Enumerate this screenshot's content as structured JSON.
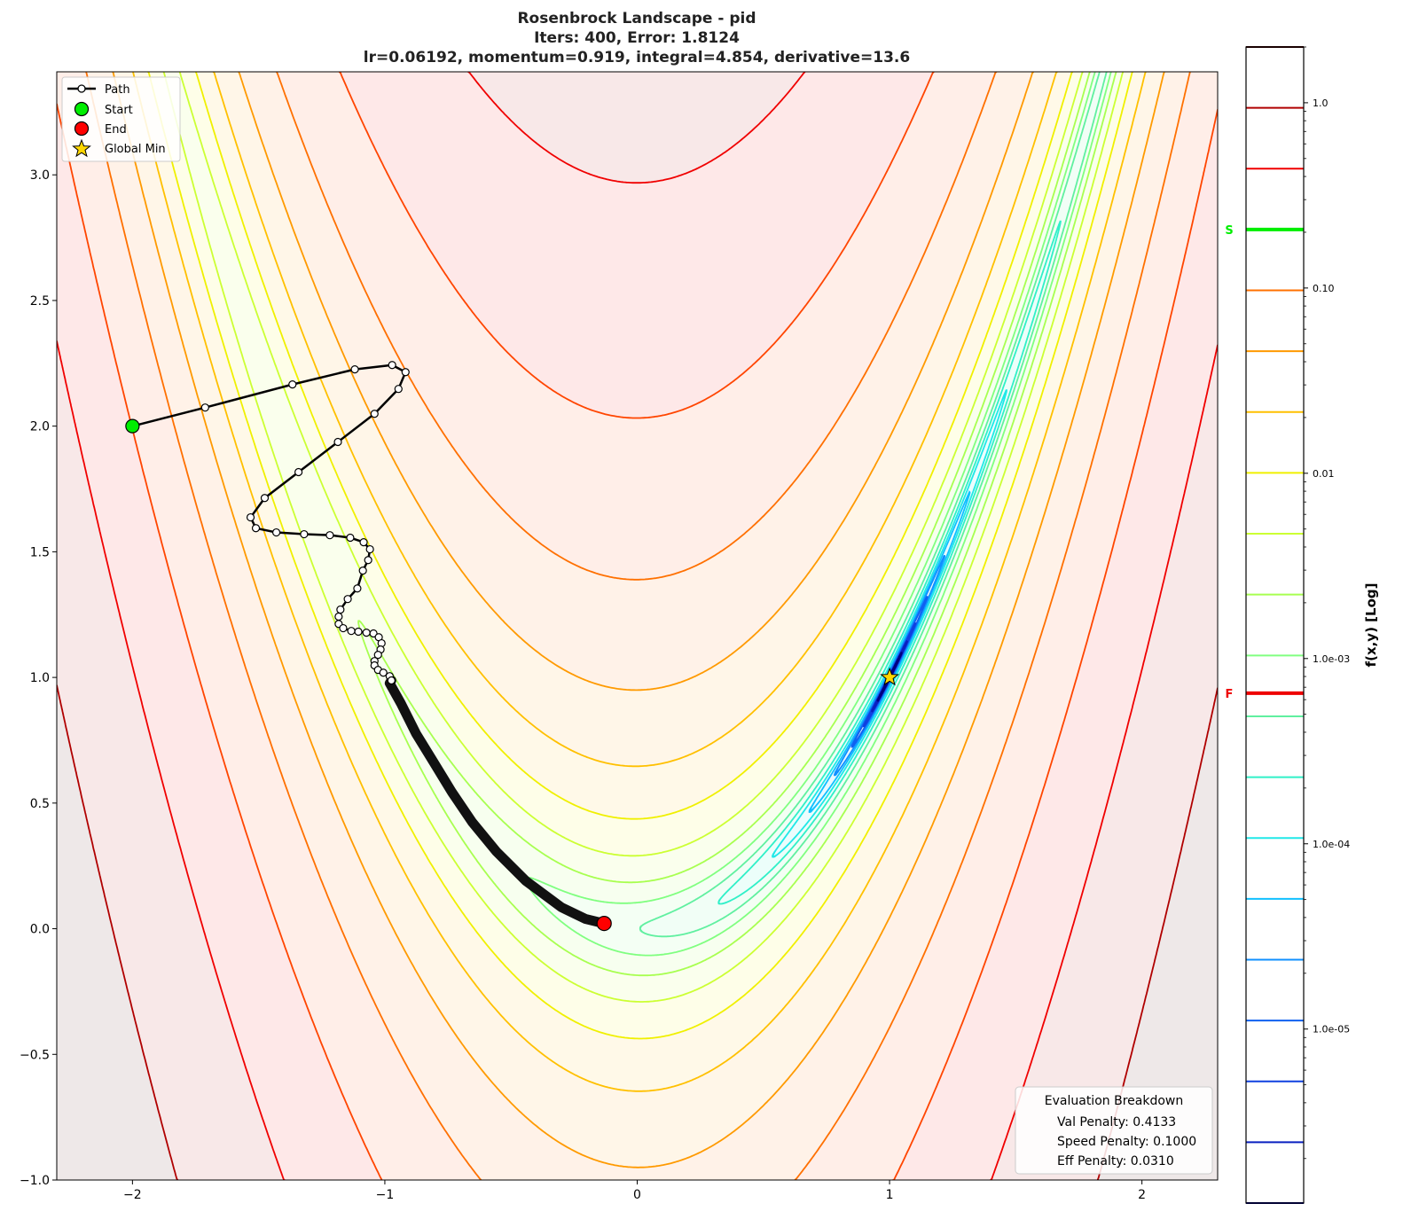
{
  "chart_data": {
    "type": "contour",
    "title_lines": [
      "Rosenbrock Landscape - pid",
      "Iters: 400, Error: 1.8124",
      "lr=0.06192, momentum=0.919, integral=4.854, derivative=13.6"
    ],
    "function": "(1-x)^2 + 100(y-x^2)^2",
    "xlim": [
      -2.3,
      2.3
    ],
    "ylim": [
      -1.0,
      3.41
    ],
    "x_ticks": [
      -2,
      -1,
      0,
      1,
      2
    ],
    "x_tick_labels": [
      "−2",
      "−1",
      "0",
      "1",
      "2"
    ],
    "y_ticks": [
      -1.0,
      -0.5,
      0.0,
      0.5,
      1.0,
      1.5,
      2.0,
      2.5,
      3.0
    ],
    "y_tick_labels": [
      "−1.0",
      "−0.5",
      "0.0",
      "0.5",
      "1.0",
      "1.5",
      "2.0",
      "2.5",
      "3.0"
    ],
    "grid": false,
    "contour_levels": [
      4000,
      1878,
      882,
      414,
      194,
      91.2,
      42.8,
      20.1,
      9.44,
      4.43,
      2.08,
      0.977,
      0.459,
      0.215,
      0.101,
      0.0475,
      0.0223,
      0.0105,
      0.00491,
      0.00231
    ],
    "contour_colors": [
      "#3d0000",
      "#b00000",
      "#f00000",
      "#ff4500",
      "#ff7000",
      "#ff9a00",
      "#ffc000",
      "#f0f000",
      "#ccff33",
      "#a8ff50",
      "#80ff80",
      "#60f0a0",
      "#30f0c8",
      "#20e8e8",
      "#10c0ff",
      "#1090ff",
      "#1060f0",
      "#1040e0",
      "#0a20c0",
      "#000080"
    ],
    "path": [
      [
        -2.0,
        2.0
      ],
      [
        -1.712,
        2.074
      ],
      [
        -1.366,
        2.166
      ],
      [
        -1.119,
        2.226
      ],
      [
        -0.971,
        2.243
      ],
      [
        -0.918,
        2.215
      ],
      [
        -0.946,
        2.148
      ],
      [
        -1.041,
        2.049
      ],
      [
        -1.186,
        1.937
      ],
      [
        -1.342,
        1.817
      ],
      [
        -1.476,
        1.714
      ],
      [
        -1.532,
        1.637
      ],
      [
        -1.511,
        1.594
      ],
      [
        -1.43,
        1.577
      ],
      [
        -1.32,
        1.57
      ],
      [
        -1.218,
        1.566
      ],
      [
        -1.137,
        1.556
      ],
      [
        -1.084,
        1.538
      ],
      [
        -1.059,
        1.51
      ],
      [
        -1.066,
        1.467
      ],
      [
        -1.087,
        1.425
      ],
      [
        -1.109,
        1.354
      ],
      [
        -1.147,
        1.312
      ],
      [
        -1.176,
        1.27
      ],
      [
        -1.183,
        1.242
      ],
      [
        -1.183,
        1.213
      ],
      [
        -1.165,
        1.196
      ],
      [
        -1.133,
        1.185
      ],
      [
        -1.105,
        1.182
      ],
      [
        -1.073,
        1.178
      ],
      [
        -1.045,
        1.175
      ],
      [
        -1.024,
        1.16
      ],
      [
        -1.013,
        1.136
      ],
      [
        -1.017,
        1.111
      ],
      [
        -1.027,
        1.09
      ],
      [
        -1.041,
        1.065
      ],
      [
        -1.041,
        1.048
      ],
      [
        -1.027,
        1.03
      ],
      [
        -1.006,
        1.019
      ],
      [
        -0.981,
        1.005
      ],
      [
        -0.974,
        0.988
      ],
      [
        -0.981,
        0.977
      ],
      [
        -0.936,
        0.896
      ],
      [
        -0.876,
        0.776
      ],
      [
        -0.805,
        0.66
      ],
      [
        -0.734,
        0.543
      ],
      [
        -0.653,
        0.423
      ],
      [
        -0.558,
        0.307
      ],
      [
        -0.441,
        0.19
      ],
      [
        -0.3,
        0.085
      ],
      [
        -0.205,
        0.039
      ],
      [
        -0.131,
        0.021
      ]
    ],
    "start": [
      -2.0,
      2.0
    ],
    "end": [
      -0.131,
      0.021
    ],
    "global_min": [
      1.0,
      1.0
    ],
    "legend": {
      "position": "top-left",
      "entries": [
        "Path",
        "Start",
        "End",
        "Global Min"
      ]
    },
    "colors": {
      "start": "#00ee00",
      "end": "#ff0000",
      "global_min": "#ffd700",
      "path": "#000000"
    },
    "colorbar": {
      "label": "f(x,y) [Log]",
      "scale": "log",
      "range": [
        1.15e-06,
        2.0
      ],
      "tick_values": [
        1.0,
        0.1,
        0.01,
        0.001,
        0.0001,
        1e-05
      ],
      "tick_labels": [
        "1.0",
        "0.10",
        "0.01",
        "1.0e-03",
        "1.0e-04",
        "1.0e-05"
      ],
      "start_marker": {
        "label": "S",
        "value": 0.207,
        "color": "#00ee00"
      },
      "final_marker": {
        "label": "F",
        "value": 0.00065,
        "color": "#ee0000"
      }
    },
    "annotation_box": {
      "title": "Evaluation Breakdown",
      "lines": [
        "Val Penalty: 0.4133",
        "Speed Penalty: 0.1000",
        "Eff Penalty: 0.0310"
      ],
      "position": "bottom-right"
    }
  }
}
